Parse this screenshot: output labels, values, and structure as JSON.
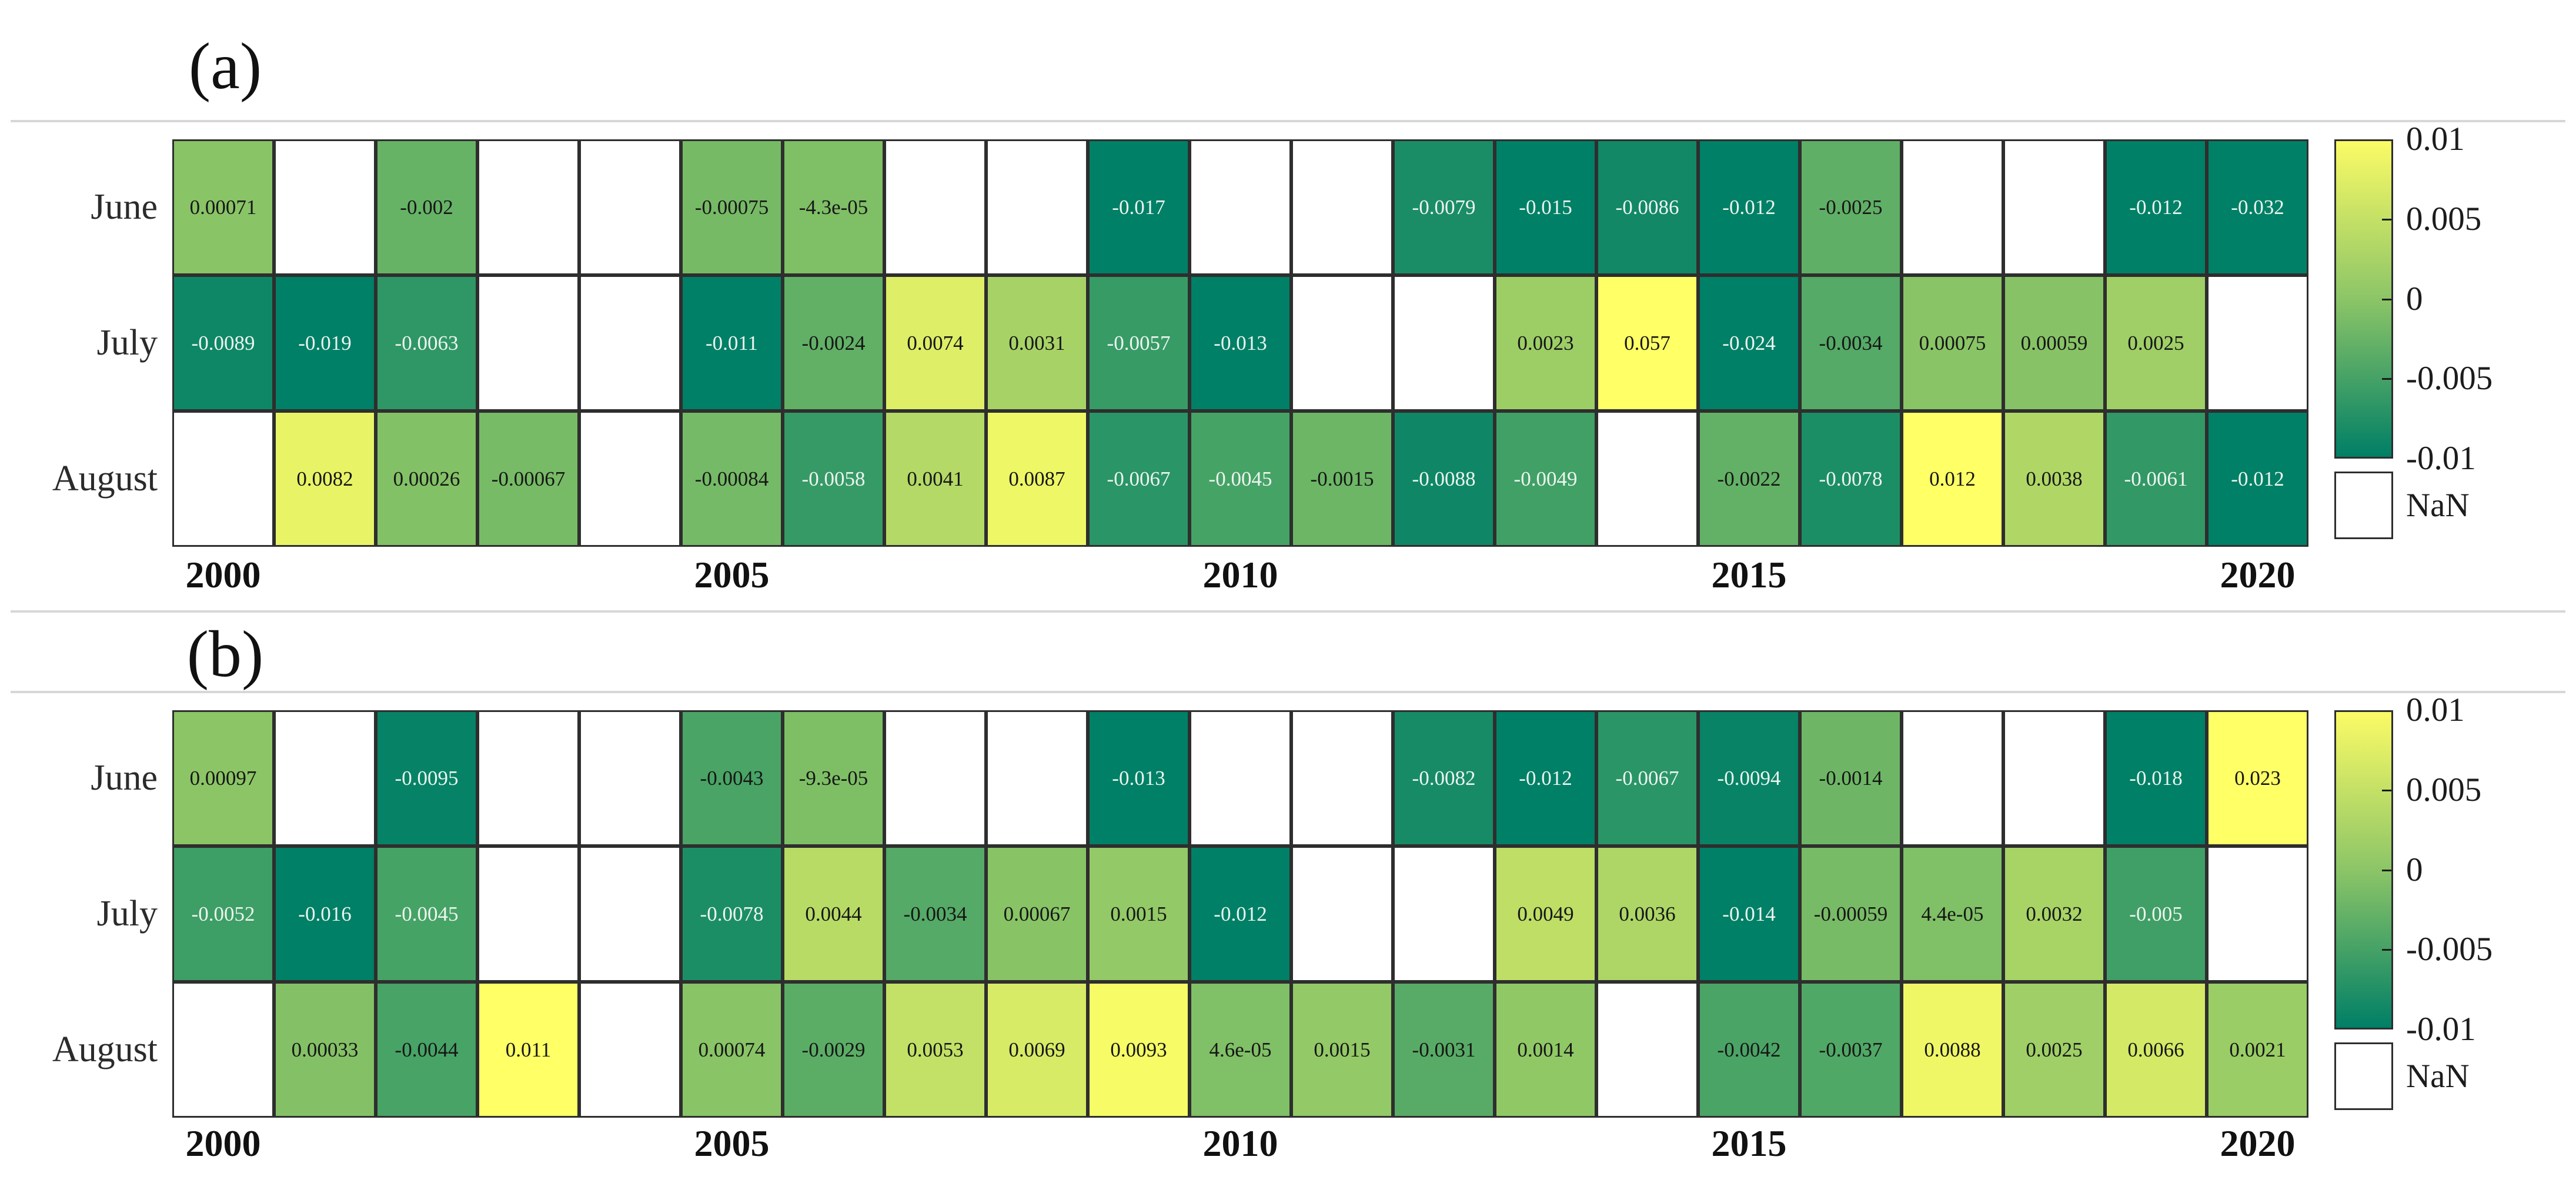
{
  "chart_data": [
    {
      "type": "heatmap",
      "panel_label": "(a)",
      "rows": [
        "June",
        "July",
        "August"
      ],
      "columns": [
        2000,
        2001,
        2002,
        2003,
        2004,
        2005,
        2006,
        2007,
        2008,
        2009,
        2010,
        2011,
        2012,
        2013,
        2014,
        2015,
        2016,
        2017,
        2018,
        2019,
        2020
      ],
      "x_tick_labels": [
        "2000",
        "2005",
        "2010",
        "2015",
        "2020"
      ],
      "vmin": -0.01,
      "vmax": 0.01,
      "values": {
        "June": [
          "0.00071",
          null,
          "-0.002",
          null,
          null,
          "-0.00075",
          "-4.3e-05",
          null,
          null,
          "-0.017",
          null,
          null,
          "-0.0079",
          "-0.015",
          "-0.0086",
          "-0.012",
          "-0.0025",
          null,
          null,
          "-0.012",
          "-0.032"
        ],
        "July": [
          "-0.0089",
          "-0.019",
          "-0.0063",
          null,
          null,
          "-0.011",
          "-0.0024",
          "0.0074",
          "0.0031",
          "-0.0057",
          "-0.013",
          null,
          null,
          "0.0023",
          "0.057",
          "-0.024",
          "-0.0034",
          "0.00075",
          "0.00059",
          "0.0025",
          null
        ],
        "August": [
          null,
          "0.0082",
          "0.00026",
          "-0.00067",
          null,
          "-0.00084",
          "-0.0058",
          "0.0041",
          "0.0087",
          "-0.0067",
          "-0.0045",
          "-0.0015",
          "-0.0088",
          "-0.0049",
          null,
          "-0.0022",
          "-0.0078",
          "0.012",
          "0.0038",
          "-0.0061",
          "-0.012"
        ]
      }
    },
    {
      "type": "heatmap",
      "panel_label": "(b)",
      "rows": [
        "June",
        "July",
        "August"
      ],
      "columns": [
        2000,
        2001,
        2002,
        2003,
        2004,
        2005,
        2006,
        2007,
        2008,
        2009,
        2010,
        2011,
        2012,
        2013,
        2014,
        2015,
        2016,
        2017,
        2018,
        2019,
        2020
      ],
      "x_tick_labels": [
        "2000",
        "2005",
        "2010",
        "2015",
        "2020"
      ],
      "vmin": -0.01,
      "vmax": 0.01,
      "values": {
        "June": [
          "0.00097",
          null,
          "-0.0095",
          null,
          null,
          "-0.0043",
          "-9.3e-05",
          null,
          null,
          "-0.013",
          null,
          null,
          "-0.0082",
          "-0.012",
          "-0.0067",
          "-0.0094",
          "-0.0014",
          null,
          null,
          "-0.018",
          "0.023"
        ],
        "July": [
          "-0.0052",
          "-0.016",
          "-0.0045",
          null,
          null,
          "-0.0078",
          "0.0044",
          "-0.0034",
          "0.00067",
          "0.0015",
          "-0.012",
          null,
          null,
          "0.0049",
          "0.0036",
          "-0.014",
          "-0.00059",
          "4.4e-05",
          "0.0032",
          "-0.005",
          null
        ],
        "August": [
          null,
          "0.00033",
          "-0.0044",
          "0.011",
          null,
          "0.00074",
          "-0.0029",
          "0.0053",
          "0.0069",
          "0.0093",
          "4.6e-05",
          "0.0015",
          "-0.0031",
          "0.0014",
          null,
          "-0.0042",
          "-0.0037",
          "0.0088",
          "0.0025",
          "0.0066",
          "0.0021"
        ]
      }
    }
  ],
  "colorbar": {
    "tick_labels": [
      "0.01",
      "0.005",
      "0",
      "-0.005",
      "-0.01"
    ],
    "nan_label": "NaN",
    "top_color": "#ffff66",
    "bottom_color": "#007f66"
  }
}
